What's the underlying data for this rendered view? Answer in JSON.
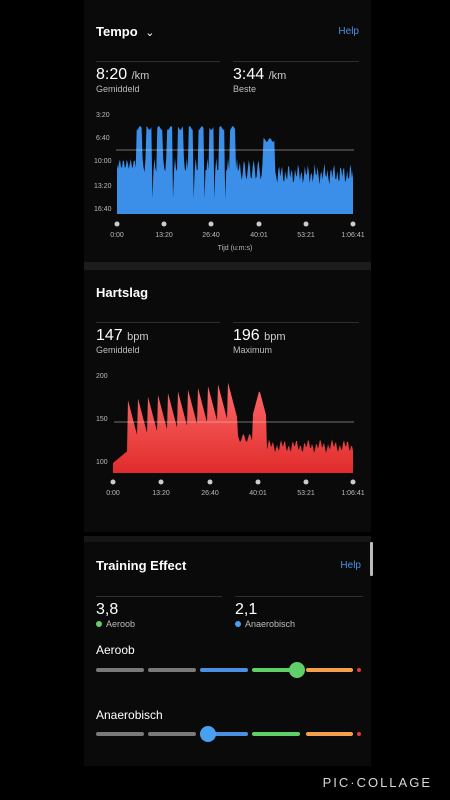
{
  "tempo": {
    "title": "Tempo",
    "help": "Help",
    "avg_value": "8:20",
    "avg_unit": "/km",
    "avg_label": "Gemiddeld",
    "best_value": "3:44",
    "best_unit": "/km",
    "best_label": "Beste",
    "y_ticks": [
      "3:20",
      "6:40",
      "10:00",
      "13:20",
      "16:40"
    ],
    "x_ticks": [
      "0:00",
      "13:20",
      "26:40",
      "40:01",
      "53:21",
      "1:06:41"
    ],
    "x_label": "Tijd (u:m:s)",
    "color": "#3b8fe8"
  },
  "hartslag": {
    "title": "Hartslag",
    "avg_value": "147",
    "avg_unit": "bpm",
    "avg_label": "Gemiddeld",
    "max_value": "196",
    "max_unit": "bpm",
    "max_label": "Maximum",
    "y_ticks": [
      "200",
      "150",
      "100"
    ],
    "x_ticks": [
      "0:00",
      "13:20",
      "26:40",
      "40:01",
      "53:21",
      "1:06:41"
    ],
    "color": "#e8383a"
  },
  "training_effect": {
    "title": "Training Effect",
    "help": "Help",
    "aerobic_value": "3,8",
    "aerobic_label": "Aeroob",
    "anaerobic_value": "2,1",
    "anaerobic_label": "Anaerobisch",
    "aerobic_scale_title": "Aeroob",
    "anaerobic_scale_title": "Anaerobisch",
    "aerobic_dot_color": "#5fd068",
    "anaerobic_dot_color": "#4aa0f0",
    "scale_colors": [
      "#7a7a7a",
      "#7a7a7a",
      "#4a90e2",
      "#5fd068",
      "#f5a04a",
      "#e8383a"
    ]
  },
  "watermark": "PIC·COLLAGE"
}
